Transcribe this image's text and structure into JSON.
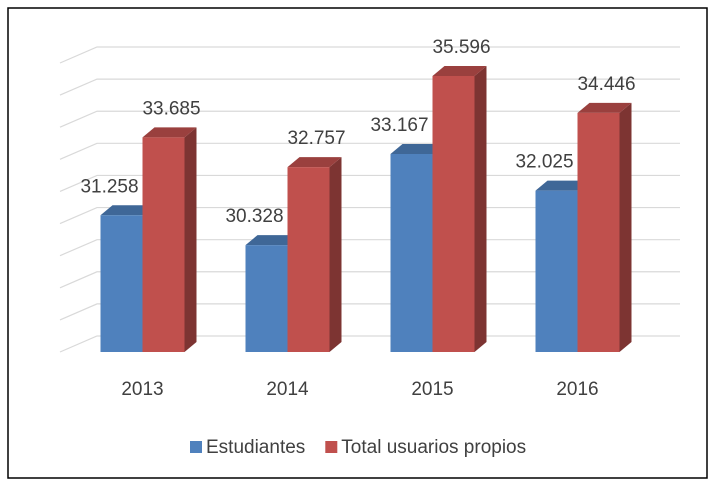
{
  "chart_data": {
    "type": "bar3d",
    "categories": [
      "2013",
      "2014",
      "2015",
      "2016"
    ],
    "series": [
      {
        "name": "Estudiantes",
        "color": "#4f81bd",
        "values": [
          31258,
          30328,
          33167,
          32025
        ],
        "value_labels": [
          "31.258",
          "30.328",
          "33.167",
          "32.025"
        ]
      },
      {
        "name": "Total usuarios propios",
        "color": "#c0504d",
        "values": [
          33685,
          32757,
          35596,
          34446
        ],
        "value_labels": [
          "33.685",
          "32.757",
          "35.596",
          "34.446"
        ]
      }
    ],
    "ylim": [
      27000,
      36000
    ],
    "yticks": [
      27000,
      28000,
      29000,
      30000,
      31000,
      32000,
      33000,
      34000,
      35000,
      36000
    ],
    "grid": true,
    "legend": "bottom"
  }
}
